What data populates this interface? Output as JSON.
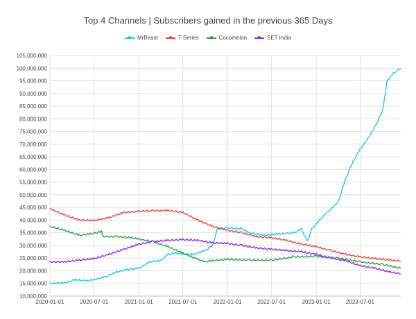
{
  "chart_data": {
    "type": "line",
    "title": "Top 4 Channels | Subscribers gained in the previous 365 Days",
    "xlabel": "",
    "ylabel": "",
    "legend_position": "top",
    "grid": true,
    "ylim": [
      10000000,
      105000000
    ],
    "x_range": [
      "2020-01-01",
      "2023-12-15"
    ],
    "x_ticks": [
      "2020-01-01",
      "2020-07-01",
      "2021-01-01",
      "2021-07-01",
      "2022-01-01",
      "2022-07-01",
      "2023-01-01",
      "2023-07-01"
    ],
    "y_ticks": [
      {
        "value": 10000000,
        "label": "10,000,000"
      },
      {
        "value": 15000000,
        "label": "15,000,000"
      },
      {
        "value": 20000000,
        "label": "20,000,000"
      },
      {
        "value": 25000000,
        "label": "25,000,000"
      },
      {
        "value": 30000000,
        "label": "30,000,000"
      },
      {
        "value": 35000000,
        "label": "35,000,000"
      },
      {
        "value": 40000000,
        "label": "40,000,000"
      },
      {
        "value": 45000000,
        "label": "45,000,000"
      },
      {
        "value": 50000000,
        "label": "50,000,000"
      },
      {
        "value": 55000000,
        "label": "55,000,000"
      },
      {
        "value": 60000000,
        "label": "60,000,000"
      },
      {
        "value": 65000000,
        "label": "65,000,000"
      },
      {
        "value": 70000000,
        "label": "70,000,000"
      },
      {
        "value": 75000000,
        "label": "75,000,000"
      },
      {
        "value": 80000000,
        "label": "80,000,000"
      },
      {
        "value": 85000000,
        "label": "85,000,000"
      },
      {
        "value": 90000000,
        "label": "90,000,000"
      },
      {
        "value": 95000000,
        "label": "95,000,000"
      },
      {
        "value": 100000000,
        "label": "100,000,000"
      },
      {
        "value": 105000000,
        "label": "105,000,000"
      }
    ],
    "series": [
      {
        "name": "MrBeast",
        "color": "#26c6da",
        "points": [
          [
            "2020-01-01",
            15000000
          ],
          [
            "2020-03-01",
            15200000
          ],
          [
            "2020-04-15",
            16500000
          ],
          [
            "2020-05-01",
            16300000
          ],
          [
            "2020-06-01",
            16000000
          ],
          [
            "2020-07-01",
            16500000
          ],
          [
            "2020-08-15",
            17500000
          ],
          [
            "2020-10-01",
            19500000
          ],
          [
            "2020-11-15",
            20500000
          ],
          [
            "2021-01-01",
            21000000
          ],
          [
            "2021-02-15",
            23500000
          ],
          [
            "2021-04-01",
            24000000
          ],
          [
            "2021-05-01",
            26500000
          ],
          [
            "2021-06-01",
            27000000
          ],
          [
            "2021-07-01",
            26500000
          ],
          [
            "2021-08-15",
            26500000
          ],
          [
            "2021-10-01",
            28000000
          ],
          [
            "2021-11-01",
            30000000
          ],
          [
            "2021-11-20",
            36500000
          ],
          [
            "2022-01-01",
            37000000
          ],
          [
            "2022-03-01",
            36500000
          ],
          [
            "2022-04-01",
            35000000
          ],
          [
            "2022-06-01",
            34000000
          ],
          [
            "2022-08-01",
            34500000
          ],
          [
            "2022-10-01",
            35000000
          ],
          [
            "2022-11-01",
            36500000
          ],
          [
            "2022-11-25",
            31500000
          ],
          [
            "2022-12-15",
            36500000
          ],
          [
            "2023-01-15",
            40000000
          ],
          [
            "2023-02-15",
            43000000
          ],
          [
            "2023-04-01",
            47000000
          ],
          [
            "2023-05-01",
            56000000
          ],
          [
            "2023-06-01",
            63000000
          ],
          [
            "2023-07-01",
            68000000
          ],
          [
            "2023-08-01",
            72000000
          ],
          [
            "2023-09-01",
            77000000
          ],
          [
            "2023-10-01",
            83000000
          ],
          [
            "2023-10-20",
            95000000
          ],
          [
            "2023-11-15",
            98000000
          ],
          [
            "2023-12-15",
            100000000
          ]
        ]
      },
      {
        "name": "T-Series",
        "color": "#e8473f",
        "points": [
          [
            "2020-01-01",
            44500000
          ],
          [
            "2020-03-01",
            42000000
          ],
          [
            "2020-05-01",
            40000000
          ],
          [
            "2020-07-01",
            39800000
          ],
          [
            "2020-09-01",
            41000000
          ],
          [
            "2020-11-01",
            43000000
          ],
          [
            "2021-01-01",
            43500000
          ],
          [
            "2021-03-01",
            43700000
          ],
          [
            "2021-05-01",
            43800000
          ],
          [
            "2021-07-01",
            43000000
          ],
          [
            "2021-09-01",
            40000000
          ],
          [
            "2021-11-01",
            37500000
          ],
          [
            "2022-01-01",
            36000000
          ],
          [
            "2022-03-01",
            35000000
          ],
          [
            "2022-05-01",
            33500000
          ],
          [
            "2022-07-01",
            33000000
          ],
          [
            "2022-09-01",
            32000000
          ],
          [
            "2022-11-01",
            30500000
          ],
          [
            "2023-01-01",
            29500000
          ],
          [
            "2023-03-01",
            28000000
          ],
          [
            "2023-05-01",
            26500000
          ],
          [
            "2023-07-01",
            25500000
          ],
          [
            "2023-09-01",
            24800000
          ],
          [
            "2023-11-01",
            24200000
          ],
          [
            "2023-12-15",
            23800000
          ]
        ]
      },
      {
        "name": "Cocomelon",
        "color": "#2e9e45",
        "points": [
          [
            "2020-01-01",
            37500000
          ],
          [
            "2020-03-01",
            36000000
          ],
          [
            "2020-05-01",
            34000000
          ],
          [
            "2020-06-15",
            34500000
          ],
          [
            "2020-08-01",
            35500000
          ],
          [
            "2020-08-05",
            33500000
          ],
          [
            "2020-10-01",
            33500000
          ],
          [
            "2020-12-01",
            33000000
          ],
          [
            "2021-01-01",
            32500000
          ],
          [
            "2021-03-01",
            31500000
          ],
          [
            "2021-05-01",
            29500000
          ],
          [
            "2021-07-01",
            27000000
          ],
          [
            "2021-09-01",
            24500000
          ],
          [
            "2021-10-01",
            23500000
          ],
          [
            "2021-11-01",
            24000000
          ],
          [
            "2022-01-01",
            24500000
          ],
          [
            "2022-04-01",
            24200000
          ],
          [
            "2022-07-01",
            24100000
          ],
          [
            "2022-10-01",
            25500000
          ],
          [
            "2023-01-01",
            25700000
          ],
          [
            "2023-04-01",
            25000000
          ],
          [
            "2023-07-01",
            23500000
          ],
          [
            "2023-10-01",
            22500000
          ],
          [
            "2023-12-15",
            21000000
          ]
        ]
      },
      {
        "name": "SET India",
        "color": "#8a2be2",
        "points": [
          [
            "2020-01-01",
            23500000
          ],
          [
            "2020-03-01",
            23500000
          ],
          [
            "2020-05-01",
            24200000
          ],
          [
            "2020-07-01",
            24800000
          ],
          [
            "2020-09-01",
            26500000
          ],
          [
            "2020-11-01",
            28500000
          ],
          [
            "2021-01-01",
            30500000
          ],
          [
            "2021-03-01",
            31500000
          ],
          [
            "2021-05-01",
            32000000
          ],
          [
            "2021-07-01",
            32300000
          ],
          [
            "2021-09-01",
            32000000
          ],
          [
            "2021-11-01",
            31000000
          ],
          [
            "2022-01-01",
            30800000
          ],
          [
            "2022-03-01",
            30000000
          ],
          [
            "2022-05-01",
            29000000
          ],
          [
            "2022-07-01",
            28500000
          ],
          [
            "2022-09-01",
            28000000
          ],
          [
            "2022-11-01",
            27500000
          ],
          [
            "2023-01-01",
            26500000
          ],
          [
            "2023-03-01",
            25000000
          ],
          [
            "2023-05-01",
            24000000
          ],
          [
            "2023-07-01",
            22000000
          ],
          [
            "2023-09-01",
            21000000
          ],
          [
            "2023-11-01",
            19500000
          ],
          [
            "2023-12-15",
            18800000
          ]
        ]
      }
    ]
  }
}
